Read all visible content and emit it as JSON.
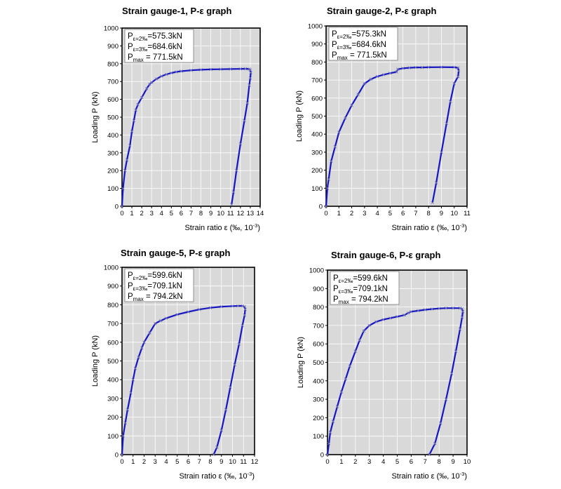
{
  "colors": {
    "plot_bg": "#d9d9d9",
    "grid": "#ffffff",
    "line": "#1515c4",
    "marker": "#7a7ab5"
  },
  "chart_data": [
    {
      "type": "line",
      "title": "Strain gauge-1,  P-ε graph",
      "ylabel": "Loading P (kN)",
      "xlabel": "Strain ratio ε (‰, 10",
      "xlabel_exp": "-3",
      "xlabel_close": ")",
      "xlim": [
        0,
        14
      ],
      "ylim": [
        0,
        1000
      ],
      "xstep": 1,
      "ystep": 100,
      "annotations": [
        {
          "label": "P",
          "sub": "ε=2‰",
          "value": "=575.3kN"
        },
        {
          "label": "P",
          "sub": "ε=3‰",
          "value": "=684.6kN"
        },
        {
          "label": "P",
          "sub": "max",
          "value": " = 771.5kN"
        }
      ],
      "series": [
        {
          "x": [
            0,
            0.1,
            0.3,
            0.5,
            0.8,
            1.0,
            1.2,
            1.4,
            1.6,
            2.0,
            2.5,
            2.8,
            3.0,
            3.5,
            4.0,
            4.5,
            5.0,
            5.5,
            6.0,
            7.0,
            8.0,
            9.0,
            10.0,
            11.0,
            12.0,
            12.5,
            12.9,
            13.0,
            13.05,
            13.0,
            12.9,
            12.7,
            12.4,
            12.0,
            11.6,
            11.3,
            11.1
          ],
          "y": [
            0,
            100,
            200,
            260,
            340,
            420,
            480,
            540,
            570,
            610,
            660,
            685,
            695,
            715,
            730,
            740,
            748,
            754,
            758,
            763,
            766,
            768,
            769,
            770,
            771,
            771.5,
            770,
            765,
            750,
            720,
            680,
            580,
            480,
            350,
            200,
            80,
            10
          ]
        }
      ]
    },
    {
      "type": "line",
      "title": "Strain gauge-2,  P-ε graph",
      "ylabel": "Loading P (kN)",
      "xlabel": "Strain ratio ε (‰, 10",
      "xlabel_exp": "-3",
      "xlabel_close": ")",
      "xlim": [
        0,
        11
      ],
      "ylim": [
        0,
        1000
      ],
      "xstep": 1,
      "ystep": 100,
      "annotations": [
        {
          "label": "P",
          "sub": "ε=2‰",
          "value": "=575.3kN"
        },
        {
          "label": "P",
          "sub": "ε=3‰",
          "value": "=684.6kN"
        },
        {
          "label": "P",
          "sub": "max",
          "value": " = 771.5kN"
        }
      ],
      "series": [
        {
          "x": [
            0,
            0.1,
            0.2,
            0.4,
            0.7,
            1.0,
            1.5,
            2.0,
            2.5,
            3.0,
            3.5,
            4.0,
            4.5,
            5.0,
            5.5,
            5.6,
            6.0,
            6.5,
            7.0,
            7.5,
            8.0,
            9.0,
            10.0,
            10.3,
            10.35,
            10.3,
            10.0,
            9.7,
            9.4,
            9.0,
            8.6,
            8.3
          ],
          "y": [
            0,
            100,
            150,
            250,
            330,
            410,
            490,
            560,
            620,
            680,
            705,
            720,
            730,
            738,
            745,
            760,
            765,
            768,
            770,
            770,
            771,
            771.5,
            771,
            768,
            750,
            720,
            680,
            580,
            460,
            300,
            130,
            20
          ]
        }
      ]
    },
    {
      "type": "line",
      "title": "Strain gauge-5,  P-ε graph",
      "ylabel": "Loading P (kN)",
      "xlabel": "Strain ratio ε (‰, 10",
      "xlabel_exp": "-3",
      "xlabel_close": ")",
      "xlim": [
        0,
        12
      ],
      "ylim": [
        0,
        1000
      ],
      "xstep": 1,
      "ystep": 100,
      "annotations": [
        {
          "label": "P",
          "sub": "ε=2‰",
          "value": "=599.6kN"
        },
        {
          "label": "P",
          "sub": "ε=3‰",
          "value": "=709.1kN"
        },
        {
          "label": "P",
          "sub": "max",
          "value": " = 794.2kN"
        }
      ],
      "series": [
        {
          "x": [
            0,
            0.1,
            0.3,
            0.5,
            0.8,
            1.0,
            1.2,
            1.5,
            1.8,
            2.0,
            2.5,
            3.0,
            3.5,
            4.0,
            5.0,
            6.0,
            7.0,
            8.0,
            9.0,
            10.0,
            10.5,
            10.9,
            11.1,
            11.15,
            11.1,
            10.9,
            10.6,
            10.2,
            9.8,
            9.4,
            9.0,
            8.6,
            8.3
          ],
          "y": [
            0,
            100,
            170,
            240,
            330,
            400,
            460,
            520,
            570,
            600,
            650,
            700,
            715,
            728,
            748,
            762,
            775,
            784,
            790,
            793,
            794,
            794,
            790,
            775,
            745,
            690,
            590,
            480,
            360,
            240,
            130,
            40,
            0
          ]
        }
      ]
    },
    {
      "type": "line",
      "title": "Strain gauge-6,  P-ε graph",
      "ylabel": "Loading P (kN)",
      "xlabel": "Strain ratio ε (‰, 10",
      "xlabel_exp": "-3",
      "xlabel_close": ")",
      "xlim": [
        0,
        10
      ],
      "ylim": [
        0,
        1000
      ],
      "xstep": 1,
      "ystep": 100,
      "annotations": [
        {
          "label": "P",
          "sub": "ε=2‰",
          "value": "=599.6kN"
        },
        {
          "label": "P",
          "sub": "ε=3‰",
          "value": "=709.1kN"
        },
        {
          "label": "P",
          "sub": "max",
          "value": " = 794.2kN"
        }
      ],
      "series": [
        {
          "x": [
            0,
            0.1,
            0.2,
            0.4,
            0.7,
            1.0,
            1.3,
            1.6,
            2.0,
            2.3,
            2.6,
            3.0,
            3.5,
            4.0,
            4.5,
            5.0,
            5.5,
            5.8,
            6.0,
            6.5,
            7.0,
            7.5,
            8.0,
            8.5,
            9.0,
            9.5,
            9.65,
            9.7,
            9.65,
            9.5,
            9.2,
            8.9,
            8.5,
            8.1,
            7.7,
            7.3
          ],
          "y": [
            0,
            60,
            120,
            180,
            260,
            340,
            410,
            480,
            560,
            620,
            670,
            700,
            720,
            732,
            740,
            748,
            756,
            768,
            775,
            780,
            785,
            789,
            792,
            794,
            794,
            794,
            790,
            775,
            745,
            680,
            560,
            440,
            300,
            170,
            60,
            0
          ]
        }
      ]
    }
  ]
}
